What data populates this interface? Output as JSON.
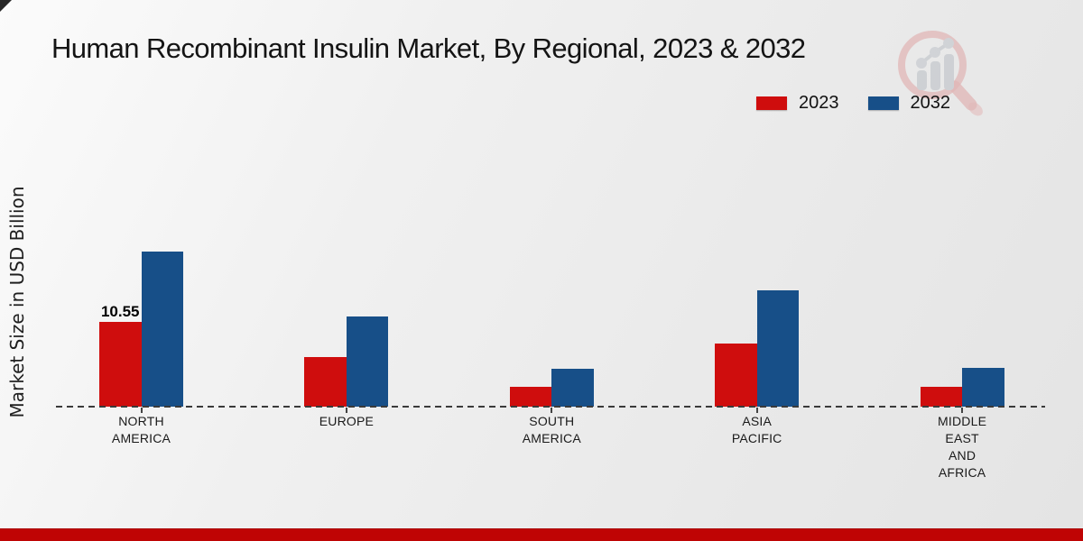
{
  "page": {
    "title": "Human Recombinant Insulin Market, By Regional, 2023 & 2032"
  },
  "legend": [
    {
      "label": "2023",
      "color": "#cf0d0d"
    },
    {
      "label": "2032",
      "color": "#174f88"
    }
  ],
  "y_axis_title": "Market Size in USD Billion",
  "watermark_icon": "magnifier-bar-chart-logo",
  "accent_colors": {
    "footer_band_red": "#bf0404",
    "baseline_gray": "#3a3a3a"
  },
  "chart_data": {
    "type": "bar",
    "title": "Human Recombinant Insulin Market, By Regional, 2023 & 2032",
    "xlabel": "",
    "ylabel": "Market Size in USD Billion",
    "categories": [
      "NORTH AMERICA",
      "EUROPE",
      "SOUTH AMERICA",
      "ASIA PACIFIC",
      "MIDDLE EAST AND AFRICA"
    ],
    "category_lines": [
      [
        "NORTH",
        "AMERICA"
      ],
      [
        "EUROPE"
      ],
      [
        "SOUTH",
        "AMERICA"
      ],
      [
        "ASIA",
        "PACIFIC"
      ],
      [
        "MIDDLE",
        "EAST",
        "AND",
        "AFRICA"
      ]
    ],
    "series": [
      {
        "name": "2023",
        "color": "#cf0d0d",
        "values": [
          10.55,
          6.2,
          2.5,
          7.9,
          2.5
        ]
      },
      {
        "name": "2032",
        "color": "#174f88",
        "values": [
          19.3,
          11.2,
          4.7,
          14.5,
          4.8
        ]
      }
    ],
    "data_labels": [
      {
        "series": "2023",
        "category": "NORTH AMERICA",
        "text": "10.55"
      }
    ],
    "ylim": [
      0,
      20
    ],
    "grid": false,
    "axis_style": "dashed-baseline-only",
    "legend_position": "top-right"
  }
}
